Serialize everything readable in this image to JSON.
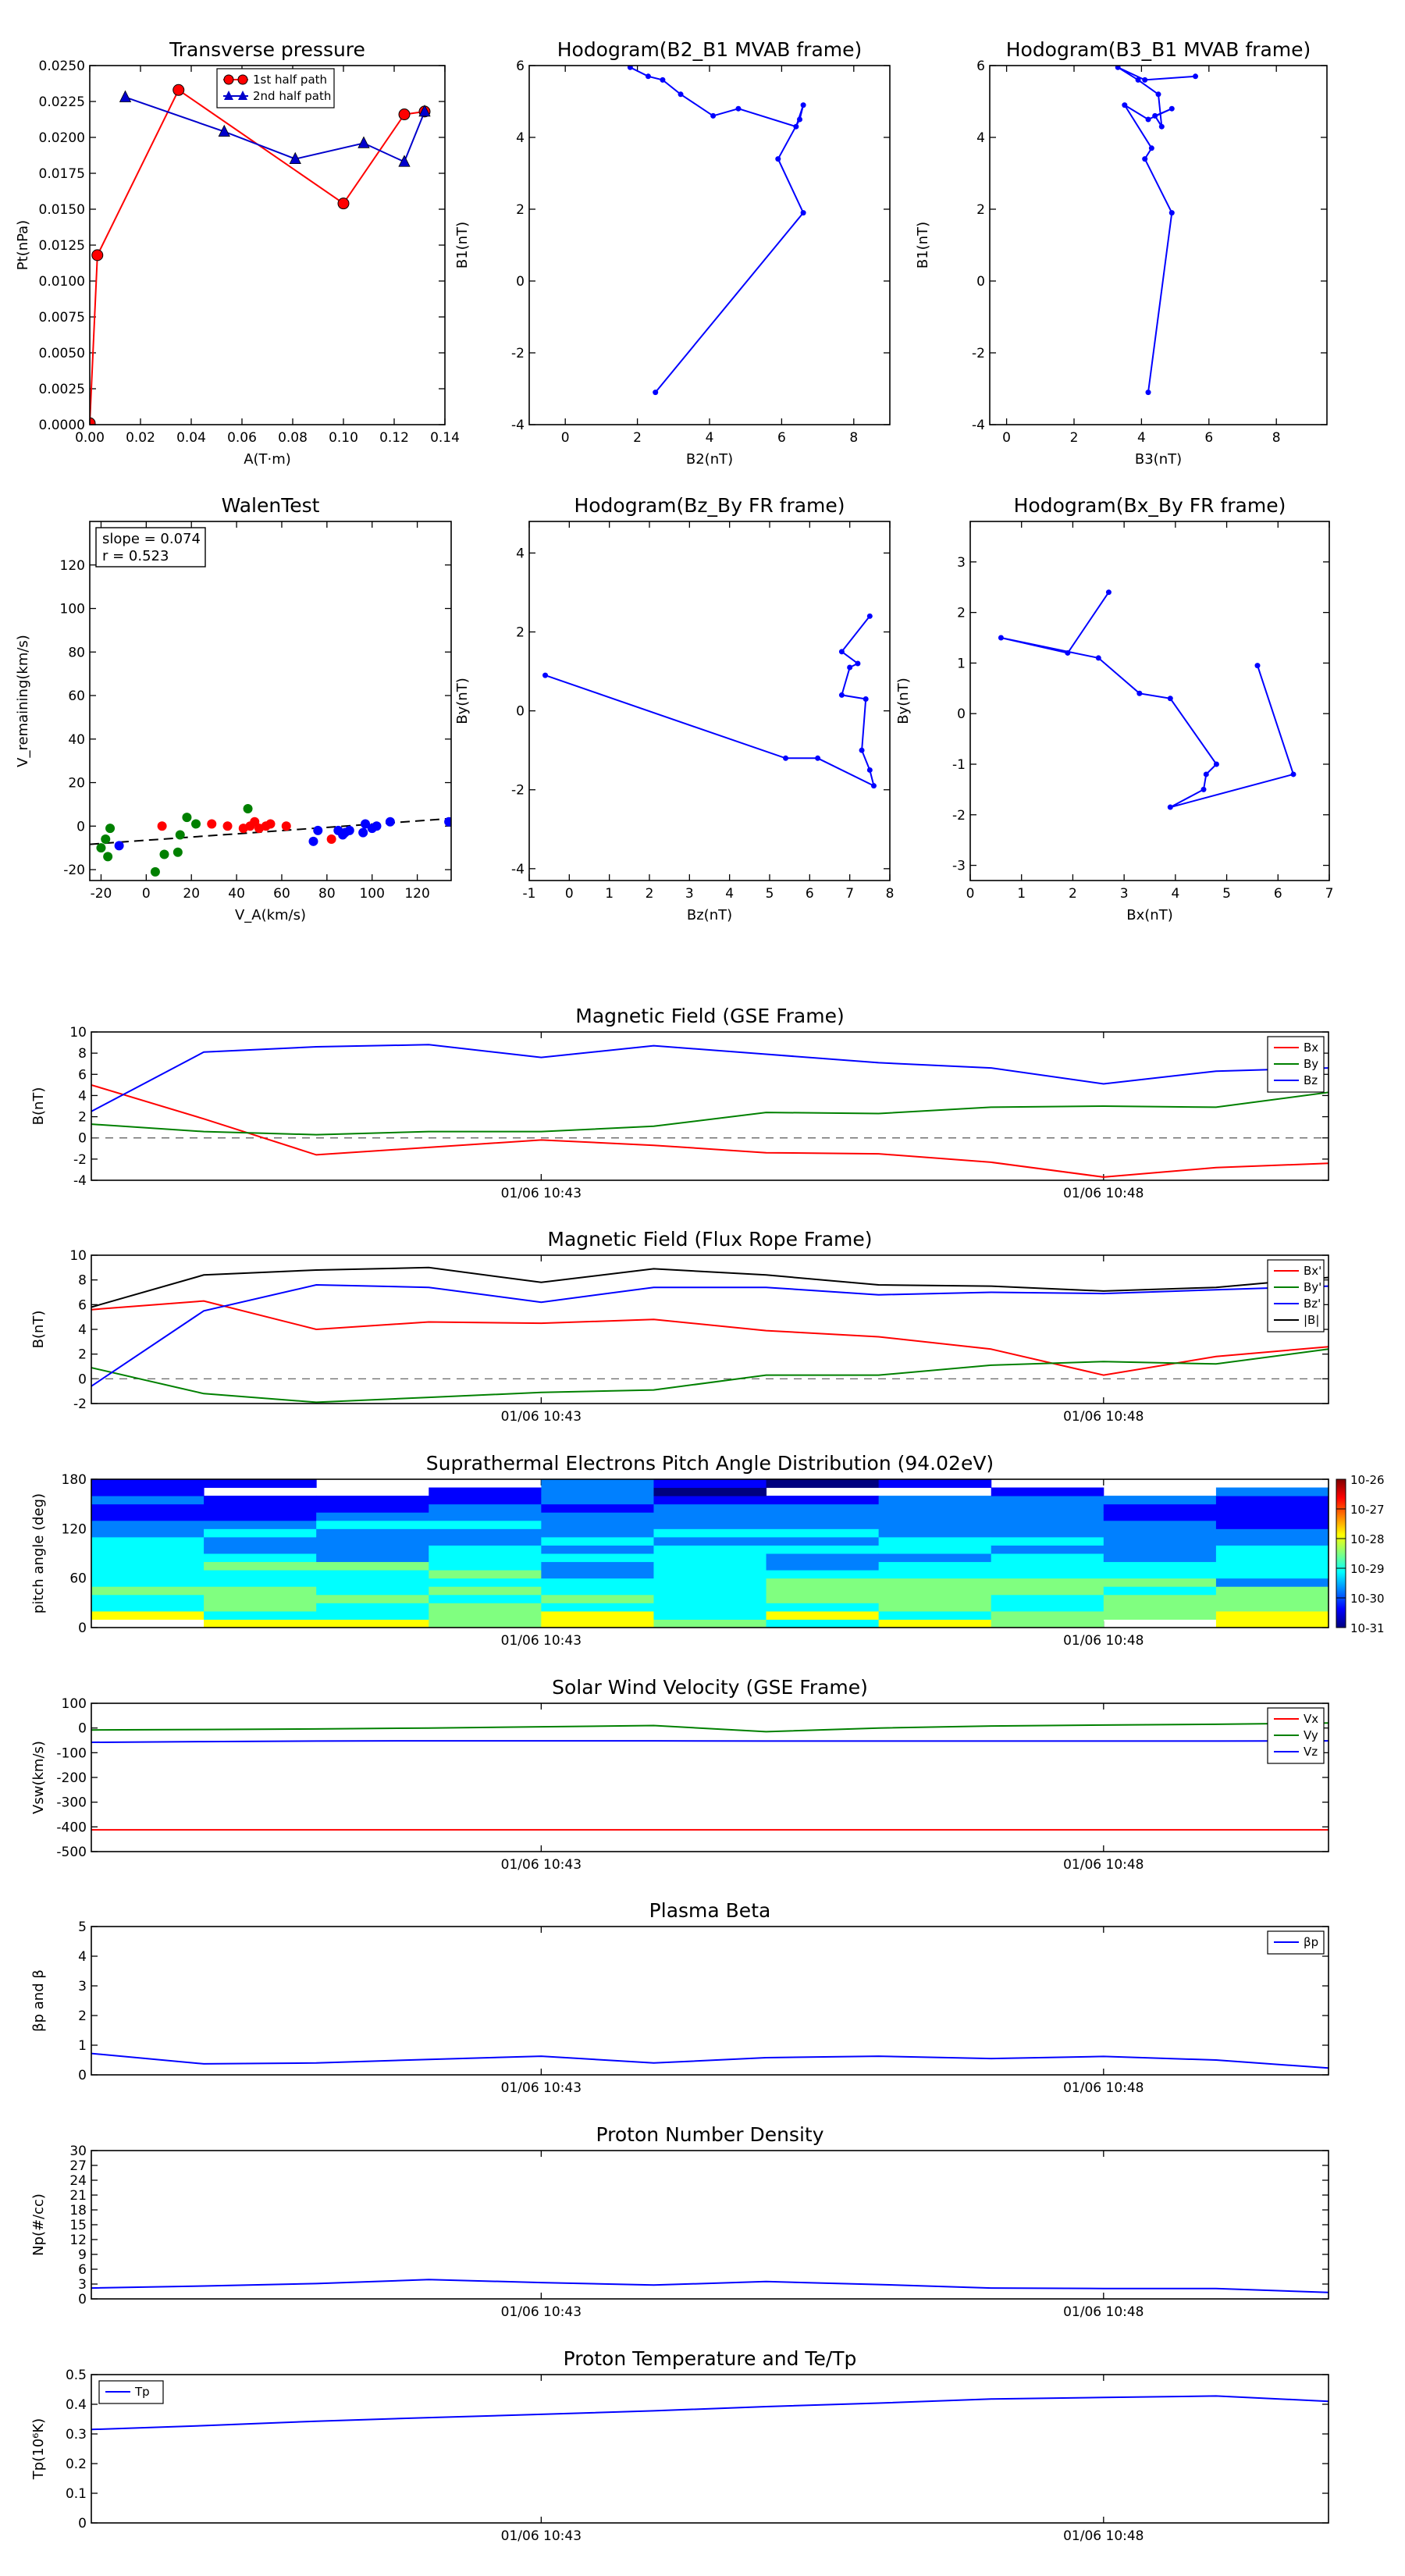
{
  "chart_data": [
    {
      "id": "transverse_pressure",
      "type": "line",
      "title": "Transverse pressure",
      "xlabel": "A(T·m)",
      "ylabel": "Pt(nPa)",
      "xlim": [
        0,
        0.14
      ],
      "ylim": [
        0,
        0.025
      ],
      "xticks": [
        0.0,
        0.02,
        0.04,
        0.06,
        0.08,
        0.1,
        0.12,
        0.14
      ],
      "xticklabels": [
        "0.00",
        "0.02",
        "0.04",
        "0.06",
        "0.08",
        "0.10",
        "0.12",
        "0.14"
      ],
      "yticks": [
        0,
        0.0025,
        0.005,
        0.0075,
        0.01,
        0.0125,
        0.015,
        0.0175,
        0.02,
        0.0225,
        0.025
      ],
      "yticklabels": [
        "0.0000",
        "0.0025",
        "0.0050",
        "0.0075",
        "0.0100",
        "0.0125",
        "0.0150",
        "0.0175",
        "0.0200",
        "0.0225",
        "0.0250"
      ],
      "legend": "top-center",
      "series": [
        {
          "name": "1st half path",
          "color": "#ff0000",
          "marker": "circle",
          "x": [
            0.0,
            0.003,
            0.035,
            0.1,
            0.124,
            0.132
          ],
          "y": [
            0.0001,
            0.0118,
            0.0233,
            0.0154,
            0.0216,
            0.0218
          ]
        },
        {
          "name": "2nd half path",
          "color": "#0000cc",
          "marker": "triangle",
          "x": [
            0.132,
            0.124,
            0.108,
            0.081,
            0.053,
            0.014
          ],
          "y": [
            0.0218,
            0.0183,
            0.0196,
            0.0185,
            0.0204,
            0.0228
          ]
        }
      ]
    },
    {
      "id": "hodogram_b2_b1",
      "type": "line",
      "title": "Hodogram(B2_B1 MVAB frame)",
      "xlabel": "B2(nT)",
      "ylabel": "B1(nT)",
      "xlim": [
        -1,
        9
      ],
      "ylim": [
        -4,
        6
      ],
      "xticks": [
        0,
        2,
        4,
        6,
        8
      ],
      "yticks": [
        -4,
        -2,
        0,
        2,
        4,
        6
      ],
      "series": [
        {
          "color": "#0000ff",
          "x": [
            2.5,
            6.6,
            5.9,
            6.5,
            6.6,
            6.4,
            4.8,
            4.1,
            3.2,
            2.7,
            2.3,
            1.8
          ],
          "y": [
            -3.1,
            1.9,
            3.4,
            4.5,
            4.9,
            4.3,
            4.8,
            4.6,
            5.2,
            5.6,
            5.7,
            5.95
          ]
        }
      ]
    },
    {
      "id": "hodogram_b3_b1",
      "type": "line",
      "title": "Hodogram(B3_B1 MVAB frame)",
      "xlabel": "B3(nT)",
      "ylabel": "B1(nT)",
      "xlim": [
        -0.5,
        9.5
      ],
      "ylim": [
        -4,
        6
      ],
      "xticks": [
        0,
        2,
        4,
        6,
        8
      ],
      "yticks": [
        -4,
        -2,
        0,
        2,
        4,
        6
      ],
      "series": [
        {
          "color": "#0000ff",
          "x": [
            4.2,
            4.9,
            4.1,
            4.3,
            3.5,
            4.2,
            4.9,
            4.4,
            4.6,
            4.5,
            3.9,
            3.3,
            4.1,
            5.6
          ],
          "y": [
            -3.1,
            1.9,
            3.4,
            3.7,
            4.9,
            4.5,
            4.8,
            4.6,
            4.3,
            5.2,
            5.6,
            5.95,
            5.6,
            5.7
          ]
        }
      ]
    },
    {
      "id": "walen_test",
      "type": "scatter",
      "title": "WalenTest",
      "xlabel": "V_A(km/s)",
      "ylabel": "V_remaining(km/s)",
      "xlim": [
        -25,
        135
      ],
      "ylim": [
        -25,
        140
      ],
      "xticks": [
        -20,
        0,
        20,
        40,
        60,
        80,
        100,
        120
      ],
      "yticks": [
        -20,
        0,
        20,
        40,
        60,
        80,
        100,
        120
      ],
      "annotation": {
        "slope": "slope = 0.074",
        "r": "r = 0.523"
      },
      "fit_line": {
        "slope": 0.074,
        "intercept": -6.5
      },
      "series": [
        {
          "color": "#008000",
          "x": [
            -20,
            -18,
            -17,
            -16,
            4,
            8,
            14,
            15,
            18,
            22,
            45
          ],
          "y": [
            -10,
            -6,
            -14,
            -1,
            -21,
            -13,
            -12,
            -4,
            4,
            1,
            8
          ]
        },
        {
          "color": "#ff0000",
          "x": [
            7,
            29,
            36,
            43,
            46,
            48,
            50,
            53,
            55,
            62,
            82
          ],
          "y": [
            0,
            1,
            0,
            -1,
            0,
            2,
            -1,
            0,
            1,
            0,
            -6
          ]
        },
        {
          "color": "#0000ff",
          "x": [
            -12,
            74,
            76,
            85,
            87,
            88,
            90,
            96,
            97,
            100,
            102,
            108,
            134
          ],
          "y": [
            -9,
            -7,
            -2,
            -2,
            -4,
            -3,
            -2,
            -3,
            1,
            -1,
            0,
            2,
            2
          ]
        }
      ]
    },
    {
      "id": "hodogram_bz_by",
      "type": "line",
      "title": "Hodogram(Bz_By FR frame)",
      "xlabel": "Bz(nT)",
      "ylabel": "By(nT)",
      "xlim": [
        -1,
        8
      ],
      "ylim": [
        -4.3,
        4.8
      ],
      "xticks": [
        -1,
        0,
        1,
        2,
        3,
        4,
        5,
        6,
        7,
        8
      ],
      "yticks": [
        -4,
        -2,
        0,
        2,
        4
      ],
      "series": [
        {
          "color": "#0000ff",
          "x": [
            -0.6,
            5.4,
            6.2,
            7.6,
            7.5,
            7.3,
            7.4,
            6.8,
            7.0,
            7.2,
            6.8,
            7.5
          ],
          "y": [
            0.9,
            -1.2,
            -1.2,
            -1.9,
            -1.5,
            -1.0,
            0.3,
            0.4,
            1.1,
            1.2,
            1.5,
            2.4
          ]
        }
      ]
    },
    {
      "id": "hodogram_bx_by",
      "type": "line",
      "title": "Hodogram(Bx_By FR frame)",
      "xlabel": "Bx(nT)",
      "ylabel": "By(nT)",
      "xlim": [
        0,
        7
      ],
      "ylim": [
        -3.3,
        3.8
      ],
      "xticks": [
        0,
        1,
        2,
        3,
        4,
        5,
        6,
        7
      ],
      "yticks": [
        -3,
        -2,
        -1,
        0,
        1,
        2,
        3
      ],
      "series": [
        {
          "color": "#0000ff",
          "x": [
            2.7,
            1.9,
            0.6,
            2.5,
            3.3,
            3.9,
            4.8,
            4.6,
            4.55,
            3.9,
            6.3,
            5.6
          ],
          "y": [
            2.4,
            1.2,
            1.5,
            1.1,
            0.4,
            0.3,
            -1.0,
            -1.2,
            -1.5,
            -1.85,
            -1.2,
            0.95
          ]
        }
      ]
    },
    {
      "id": "mag_gse",
      "type": "line",
      "title": "Magnetic Field (GSE Frame)",
      "ylabel": "B(nT)",
      "xlim": [
        0,
        11
      ],
      "ylim": [
        -4,
        10
      ],
      "yticks": [
        -4,
        -2,
        0,
        2,
        4,
        6,
        8,
        10
      ],
      "xtick_positions": [
        4,
        9
      ],
      "xticklabels": [
        "01/06 10:43",
        "01/06 10:48"
      ],
      "zero_line": true,
      "legend": "upper-right",
      "series": [
        {
          "name": "Bx",
          "color": "#ff0000",
          "x": [
            0,
            1,
            2,
            3,
            4,
            5,
            6,
            7,
            8,
            9,
            10,
            11
          ],
          "y": [
            5.0,
            1.8,
            -1.6,
            -0.9,
            -0.2,
            -0.7,
            -1.4,
            -1.5,
            -2.3,
            -3.7,
            -2.8,
            -2.4
          ]
        },
        {
          "name": "By",
          "color": "#008000",
          "x": [
            0,
            1,
            2,
            3,
            4,
            5,
            6,
            7,
            8,
            9,
            10,
            11
          ],
          "y": [
            1.3,
            0.6,
            0.3,
            0.6,
            0.6,
            1.1,
            2.4,
            2.3,
            2.9,
            3.0,
            2.9,
            4.3
          ]
        },
        {
          "name": "Bz",
          "color": "#0000ff",
          "x": [
            0,
            1,
            2,
            3,
            4,
            5,
            6,
            7,
            8,
            9,
            10,
            11
          ],
          "y": [
            2.5,
            8.1,
            8.6,
            8.8,
            7.6,
            8.7,
            7.9,
            7.1,
            6.6,
            5.1,
            6.3,
            6.6
          ]
        }
      ]
    },
    {
      "id": "mag_fr",
      "type": "line",
      "title": "Magnetic Field (Flux Rope Frame)",
      "ylabel": "B(nT)",
      "xlim": [
        0,
        11
      ],
      "ylim": [
        -2,
        10
      ],
      "yticks": [
        -2,
        0,
        2,
        4,
        6,
        8,
        10
      ],
      "xtick_positions": [
        4,
        9
      ],
      "xticklabels": [
        "01/06 10:43",
        "01/06 10:48"
      ],
      "zero_line": true,
      "legend": "upper-right",
      "series": [
        {
          "name": "Bx'",
          "color": "#ff0000",
          "x": [
            0,
            1,
            2,
            3,
            4,
            5,
            6,
            7,
            8,
            9,
            10,
            11
          ],
          "y": [
            5.6,
            6.3,
            4.0,
            4.6,
            4.5,
            4.8,
            3.9,
            3.4,
            2.4,
            0.3,
            1.8,
            2.6
          ]
        },
        {
          "name": "By'",
          "color": "#008000",
          "x": [
            0,
            1,
            2,
            3,
            4,
            5,
            6,
            7,
            8,
            9,
            10,
            11
          ],
          "y": [
            0.9,
            -1.2,
            -1.9,
            -1.5,
            -1.1,
            -0.9,
            0.3,
            0.3,
            1.1,
            1.4,
            1.2,
            2.4
          ]
        },
        {
          "name": "Bz'",
          "color": "#0000ff",
          "x": [
            0,
            1,
            2,
            3,
            4,
            5,
            6,
            7,
            8,
            9,
            10,
            11
          ],
          "y": [
            -0.6,
            5.5,
            7.6,
            7.4,
            6.2,
            7.4,
            7.4,
            6.8,
            7.0,
            6.9,
            7.2,
            7.5
          ]
        },
        {
          "name": "|B|",
          "color": "#000000",
          "x": [
            0,
            1,
            2,
            3,
            4,
            5,
            6,
            7,
            8,
            9,
            10,
            11
          ],
          "y": [
            5.8,
            8.4,
            8.8,
            9.0,
            7.8,
            8.9,
            8.4,
            7.6,
            7.5,
            7.1,
            7.4,
            8.2
          ]
        }
      ]
    },
    {
      "id": "pad",
      "type": "heatmap",
      "title": "Suprathermal Electrons Pitch Angle Distribution (94.02eV)",
      "ylabel": "pitch angle (deg)",
      "xlim": [
        0,
        11
      ],
      "ylim": [
        0,
        180
      ],
      "yticks": [
        0,
        60,
        120,
        180
      ],
      "xtick_positions": [
        4,
        9
      ],
      "xticklabels": [
        "01/06 10:43",
        "01/06 10:48"
      ],
      "colorbar": {
        "ticklabels": [
          "10-26",
          "10-27",
          "10-28",
          "10-29",
          "10-30",
          "10-31"
        ],
        "colors": [
          "#00007f",
          "#0000ff",
          "#0080ff",
          "#00ffff",
          "#80ff80",
          "#ffff00",
          "#ff8000",
          "#ff0000",
          "#7f0000"
        ]
      },
      "columns": 11,
      "bins_deg": 10
    },
    {
      "id": "vsw",
      "type": "line",
      "title": "Solar Wind Velocity (GSE Frame)",
      "ylabel": "Vsw(km/s)",
      "xlim": [
        0,
        11
      ],
      "ylim": [
        -500,
        100
      ],
      "yticks": [
        -500,
        -400,
        -300,
        -200,
        -100,
        0,
        100
      ],
      "xtick_positions": [
        4,
        9
      ],
      "xticklabels": [
        "01/06 10:43",
        "01/06 10:48"
      ],
      "legend": "upper-right",
      "series": [
        {
          "name": "Vx",
          "color": "#ff0000",
          "x": [
            0,
            1,
            2,
            3,
            4,
            5,
            6,
            7,
            8,
            9,
            10,
            11
          ],
          "y": [
            -412,
            -412,
            -412,
            -412,
            -412,
            -412,
            -412,
            -412,
            -412,
            -412,
            -412,
            -412
          ]
        },
        {
          "name": "Vy",
          "color": "#008000",
          "x": [
            0,
            1,
            2,
            3,
            4,
            5,
            6,
            7,
            8,
            9,
            10,
            11
          ],
          "y": [
            -8,
            -6,
            -4,
            0,
            5,
            10,
            -15,
            0,
            8,
            12,
            15,
            20
          ]
        },
        {
          "name": "Vz",
          "color": "#0000ff",
          "x": [
            0,
            1,
            2,
            3,
            4,
            5,
            6,
            7,
            8,
            9,
            10,
            11
          ],
          "y": [
            -58,
            -55,
            -53,
            -52,
            -52,
            -52,
            -53,
            -53,
            -53,
            -53,
            -53,
            -52
          ]
        }
      ]
    },
    {
      "id": "beta",
      "type": "line",
      "title": "Plasma Beta",
      "ylabel": "βp and β",
      "xlim": [
        0,
        11
      ],
      "ylim": [
        0,
        5
      ],
      "yticks": [
        0,
        1,
        2,
        3,
        4,
        5
      ],
      "xtick_positions": [
        4,
        9
      ],
      "xticklabels": [
        "01/06 10:43",
        "01/06 10:48"
      ],
      "legend": "upper-right",
      "series": [
        {
          "name": "βp",
          "color": "#0000ff",
          "x": [
            0,
            1,
            2,
            3,
            4,
            5,
            6,
            7,
            8,
            9,
            10,
            11
          ],
          "y": [
            0.72,
            0.37,
            0.4,
            0.52,
            0.63,
            0.4,
            0.58,
            0.63,
            0.55,
            0.62,
            0.5,
            0.23
          ]
        }
      ]
    },
    {
      "id": "np",
      "type": "line",
      "title": "Proton Number Density",
      "ylabel": "Np(#/cc)",
      "xlim": [
        0,
        11
      ],
      "ylim": [
        0,
        30
      ],
      "yticks": [
        0,
        3,
        6,
        9,
        12,
        15,
        18,
        21,
        24,
        27,
        30
      ],
      "xtick_positions": [
        4,
        9
      ],
      "xticklabels": [
        "01/06 10:43",
        "01/06 10:48"
      ],
      "series": [
        {
          "name": "Np",
          "color": "#0000ff",
          "x": [
            0,
            1,
            2,
            3,
            4,
            5,
            6,
            7,
            8,
            9,
            10,
            11
          ],
          "y": [
            2.2,
            2.6,
            3.1,
            3.9,
            3.3,
            2.8,
            3.5,
            2.9,
            2.2,
            2.1,
            2.1,
            1.3
          ]
        }
      ]
    },
    {
      "id": "tp",
      "type": "line",
      "title": "Proton Temperature and Te/Tp",
      "ylabel": "Tp(10⁶K)",
      "xlim": [
        0,
        11
      ],
      "ylim": [
        0,
        0.5
      ],
      "yticks": [
        0.0,
        0.1,
        0.2,
        0.3,
        0.4,
        0.5
      ],
      "xtick_positions": [
        4,
        9
      ],
      "xticklabels": [
        "01/06 10:43",
        "01/06 10:48"
      ],
      "legend": "upper-left",
      "series": [
        {
          "name": "Tp",
          "color": "#0000ff",
          "x": [
            0,
            1,
            2,
            3,
            4,
            5,
            6,
            7,
            8,
            9,
            10,
            11
          ],
          "y": [
            0.315,
            0.328,
            0.343,
            0.355,
            0.366,
            0.378,
            0.392,
            0.404,
            0.418,
            0.423,
            0.428,
            0.41
          ]
        }
      ]
    }
  ]
}
